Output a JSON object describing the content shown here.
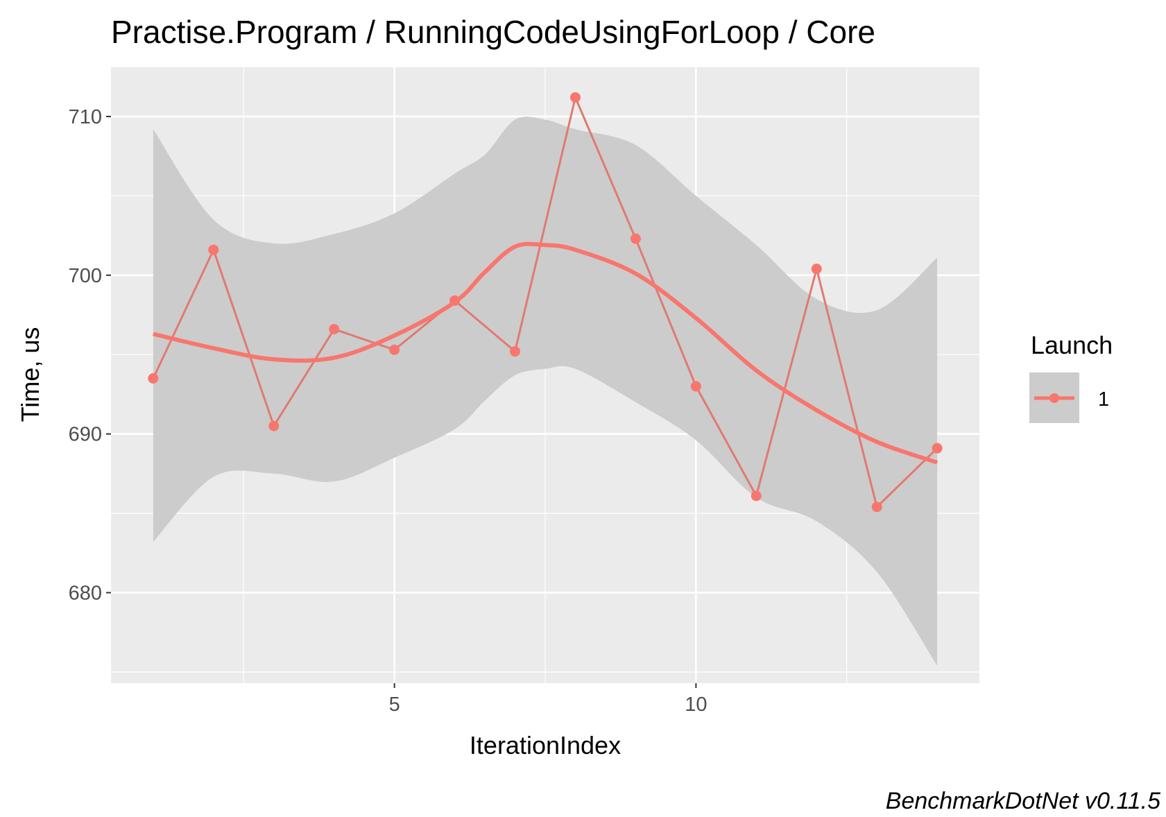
{
  "chart_data": {
    "type": "line",
    "title": "Practise.Program / RunningCodeUsingForLoop / Core",
    "xlabel": "IterationIndex",
    "ylabel": "Time, us",
    "caption": "BenchmarkDotNet v0.11.5",
    "xlim": [
      0.3,
      14.7
    ],
    "ylim": [
      674.3,
      713.1
    ],
    "x_ticks": [
      5,
      10
    ],
    "x_tick_labels": [
      "5",
      "10"
    ],
    "x_minor_ticks": [
      2.5,
      7.5,
      12.5
    ],
    "y_ticks": [
      680,
      690,
      700,
      710
    ],
    "y_tick_labels": [
      "680",
      "690",
      "700",
      "710"
    ],
    "y_minor_ticks": [
      675,
      685,
      695,
      705
    ],
    "grid": true,
    "legend": {
      "title": "Launch",
      "position": "right",
      "entries": [
        "1"
      ]
    },
    "colors": {
      "series": "#F8766D",
      "raw_line": "#e07a72",
      "ribbon": "#cccccc",
      "panel": "#ebebeb",
      "grid": "#ffffff",
      "tick_label": "#4d4d4d"
    },
    "series": [
      {
        "name": "1",
        "x": [
          1,
          2,
          3,
          4,
          5,
          6,
          7,
          8,
          9,
          10,
          11,
          12,
          13,
          14
        ],
        "values": [
          693.5,
          701.6,
          690.5,
          696.6,
          695.3,
          698.4,
          695.2,
          711.2,
          702.3,
          693.0,
          686.1,
          700.4,
          685.4,
          689.1
        ]
      }
    ],
    "smooth": {
      "x": [
        1,
        2,
        3,
        4,
        5,
        6,
        6.5,
        7,
        7.5,
        8,
        9,
        10,
        11,
        12,
        13,
        14
      ],
      "y": [
        696.3,
        695.4,
        694.7,
        694.8,
        696.2,
        698.3,
        700.2,
        701.8,
        701.9,
        701.6,
        700.1,
        697.3,
        694.0,
        691.5,
        689.5,
        688.2
      ],
      "lower": [
        683.2,
        687.3,
        687.5,
        687.0,
        688.5,
        690.3,
        692.1,
        693.7,
        694.1,
        694.1,
        692.0,
        689.6,
        686.0,
        684.5,
        681.3,
        675.4
      ],
      "upper": [
        709.2,
        703.5,
        702.0,
        702.6,
        703.9,
        706.4,
        707.6,
        709.8,
        709.8,
        709.2,
        708.2,
        705.0,
        701.9,
        698.5,
        697.8,
        701.1
      ]
    }
  }
}
